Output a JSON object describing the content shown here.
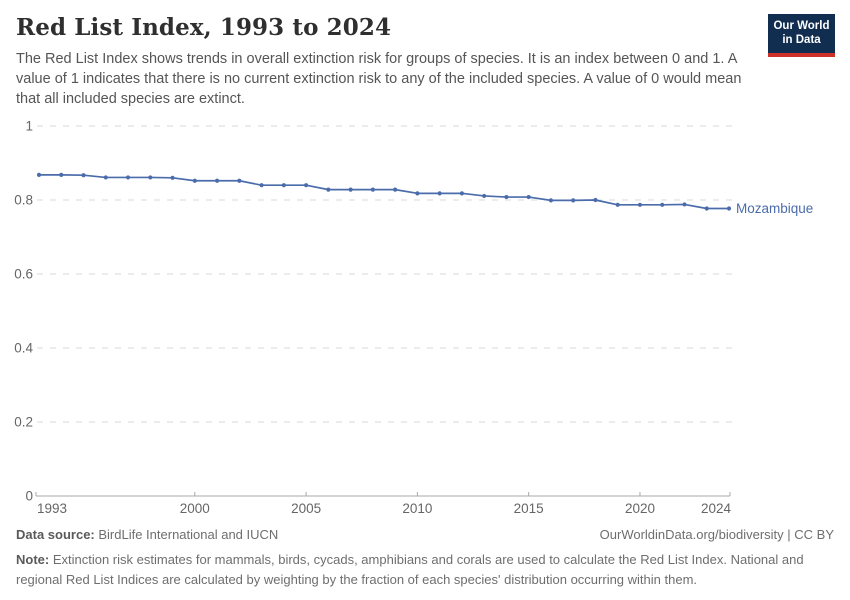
{
  "header": {
    "title": "Red List Index, 1993 to 2024",
    "subtitle": "The Red List Index shows trends in overall extinction risk for groups of species. It is an index between 0 and 1. A value of 1 indicates that there is no current extinction risk to any of the included species. A value of 0 would mean that all included species are extinct."
  },
  "logo": {
    "line1": "Our World",
    "line2": "in Data"
  },
  "chart_data": {
    "type": "line",
    "title": "Red List Index, 1993 to 2024",
    "xlabel": "",
    "ylabel": "",
    "xlim": [
      1993,
      2024
    ],
    "ylim": [
      0,
      1
    ],
    "grid": "horizontal-dashed",
    "legend_position": "end-of-line-label",
    "x_ticks": [
      1993,
      2000,
      2005,
      2010,
      2015,
      2020,
      2024
    ],
    "y_ticks": [
      0,
      0.2,
      0.4,
      0.6,
      0.8,
      1
    ],
    "y_tick_labels": [
      "0",
      "0.2",
      "0.4",
      "0.6",
      "0.8",
      "1"
    ],
    "series": [
      {
        "name": "Mozambique",
        "color": "#4b6cab",
        "x": [
          1993,
          1994,
          1995,
          1996,
          1997,
          1998,
          1999,
          2000,
          2001,
          2002,
          2003,
          2004,
          2005,
          2006,
          2007,
          2008,
          2009,
          2010,
          2011,
          2012,
          2013,
          2014,
          2015,
          2016,
          2017,
          2018,
          2019,
          2020,
          2021,
          2022,
          2023,
          2024
        ],
        "values": [
          0.868,
          0.868,
          0.867,
          0.861,
          0.861,
          0.861,
          0.86,
          0.852,
          0.852,
          0.852,
          0.84,
          0.84,
          0.84,
          0.828,
          0.828,
          0.828,
          0.828,
          0.818,
          0.818,
          0.818,
          0.811,
          0.808,
          0.808,
          0.799,
          0.799,
          0.8,
          0.787,
          0.787,
          0.787,
          0.788,
          0.777,
          0.777
        ]
      }
    ]
  },
  "footer": {
    "datasource_label": "Data source:",
    "datasource_text": " BirdLife International and IUCN",
    "attribution": "OurWorldinData.org/biodiversity | CC BY",
    "note_label": "Note:",
    "note_text": " Extinction risk estimates for mammals, birds, cycads, amphibians and corals are used to calculate the Red List Index. National and regional Red List Indices are calculated by weighting by the fraction of each species' distribution occurring within them."
  },
  "colors": {
    "line": "#4b6cab",
    "series_label": "#4b6cab",
    "grid": "#d9d9d9",
    "axis": "#a8a8a8",
    "tick_label": "#666666",
    "title": "#2f2f2f",
    "subtitle": "#555555",
    "footer": "#6e6e6e",
    "logo_bg": "#112e51",
    "logo_stripe": "#ce302a"
  }
}
